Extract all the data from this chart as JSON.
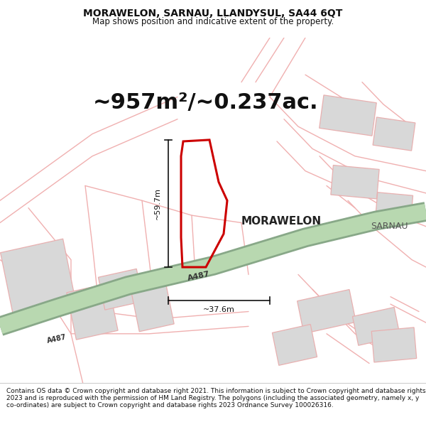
{
  "title_line1": "MORAWELON, SARNAU, LLANDYSUL, SA44 6QT",
  "title_line2": "Map shows position and indicative extent of the property.",
  "area_text": "~957m²/~0.237ac.",
  "dim_width": "~37.6m",
  "dim_height": "~59.7m",
  "property_label": "MORAWELON",
  "road_label_main": "A487",
  "road_label_lower": "A487",
  "place_label": "SARNAU",
  "footer": "Contains OS data © Crown copyright and database right 2021. This information is subject to Crown copyright and database rights 2023 and is reproduced with the permission of HM Land Registry. The polygons (including the associated geometry, namely x, y co-ordinates) are subject to Crown copyright and database rights 2023 Ordnance Survey 100026316.",
  "map_bg": "#f8f5f2",
  "road_green_fill": "#b8d8b0",
  "road_green_edge": "#88a888",
  "road_line_color": "#f0b0b0",
  "building_fill": "#d8d8d8",
  "building_edge": "#e8b0b0",
  "property_edge": "#cc0000",
  "dim_color": "#111111",
  "title_color": "#111111",
  "footer_color": "#111111",
  "title_fontsize": 10,
  "subtitle_fontsize": 8.5,
  "area_fontsize": 22,
  "dim_fontsize": 8,
  "label_fontsize": 11
}
